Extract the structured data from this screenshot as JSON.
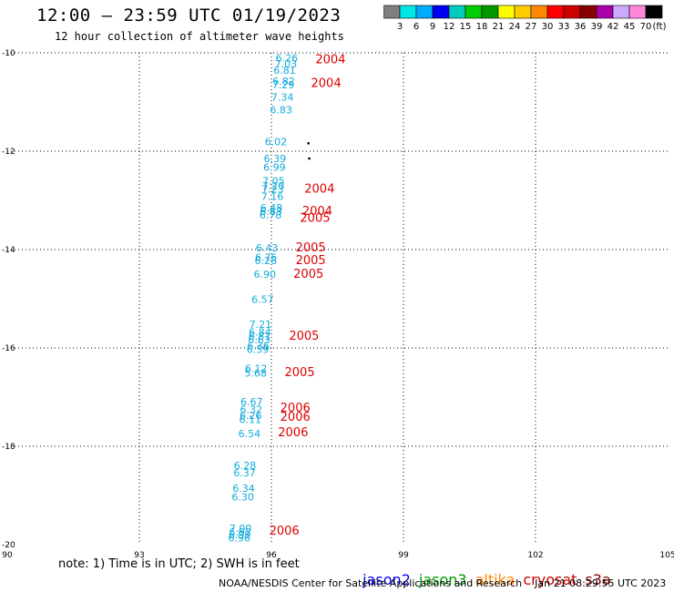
{
  "header": {
    "title": "12:00 – 23:59 UTC 01/19/2023",
    "subtitle": "12 hour collection of altimeter wave heights"
  },
  "colorbar": {
    "colors": [
      "#808080",
      "#00e5e5",
      "#00aaff",
      "#0000ee",
      "#00ccbb",
      "#00cc00",
      "#009900",
      "#ffff00",
      "#ffcc00",
      "#ff8800",
      "#ff0000",
      "#cc0000",
      "#880000",
      "#aa00aa",
      "#ccaaff",
      "#ff88dd",
      "#000000"
    ],
    "labels": [
      "3",
      "6",
      "9",
      "12",
      "15",
      "18",
      "21",
      "24",
      "27",
      "30",
      "33",
      "36",
      "39",
      "42",
      "45",
      "70"
    ],
    "unit": "(ft)"
  },
  "chart_data": {
    "type": "scatter",
    "title": "12:00 – 23:59 UTC 01/19/2023",
    "xlim": [
      90,
      105
    ],
    "ylim": [
      -20,
      -10
    ],
    "xticks": [
      "90",
      "93",
      "96",
      "99",
      "102",
      "105"
    ],
    "yticks": [
      "-10",
      "-12",
      "-14",
      "-16",
      "-18",
      "-20"
    ],
    "grid": true,
    "points": [
      {
        "lon": 96.35,
        "lat": -10.1,
        "swh": "6.26"
      },
      {
        "lon": 96.33,
        "lat": -10.22,
        "swh": "7.03"
      },
      {
        "lon": 96.3,
        "lat": -10.35,
        "swh": "6.81"
      },
      {
        "lon": 96.28,
        "lat": -10.57,
        "swh": "6.82"
      },
      {
        "lon": 96.27,
        "lat": -10.65,
        "swh": "7.29"
      },
      {
        "lon": 96.25,
        "lat": -10.9,
        "swh": "7.34"
      },
      {
        "lon": 96.22,
        "lat": -11.16,
        "swh": "6.83"
      },
      {
        "lon": 96.1,
        "lat": -11.81,
        "swh": "6.02"
      },
      {
        "lon": 96.08,
        "lat": -12.15,
        "swh": "6.39"
      },
      {
        "lon": 96.07,
        "lat": -12.32,
        "swh": "6.99"
      },
      {
        "lon": 96.05,
        "lat": -12.6,
        "swh": "7.05"
      },
      {
        "lon": 96.04,
        "lat": -12.7,
        "swh": "7.20"
      },
      {
        "lon": 96.03,
        "lat": -12.77,
        "swh": "7.23"
      },
      {
        "lon": 96.02,
        "lat": -12.92,
        "swh": "7.16"
      },
      {
        "lon": 96.0,
        "lat": -13.15,
        "swh": "6.48"
      },
      {
        "lon": 95.99,
        "lat": -13.22,
        "swh": "6.83"
      },
      {
        "lon": 95.98,
        "lat": -13.3,
        "swh": "6.78"
      },
      {
        "lon": 95.9,
        "lat": -13.96,
        "swh": "6.43"
      },
      {
        "lon": 95.88,
        "lat": -14.16,
        "swh": "6.75"
      },
      {
        "lon": 95.87,
        "lat": -14.22,
        "swh": "6.26"
      },
      {
        "lon": 95.85,
        "lat": -14.5,
        "swh": "6.90"
      },
      {
        "lon": 95.8,
        "lat": -15.01,
        "swh": "6.57"
      },
      {
        "lon": 95.75,
        "lat": -15.52,
        "swh": "7.21"
      },
      {
        "lon": 95.74,
        "lat": -15.68,
        "swh": "6.84"
      },
      {
        "lon": 95.73,
        "lat": -15.76,
        "swh": "6.81"
      },
      {
        "lon": 95.72,
        "lat": -15.83,
        "swh": "6.63"
      },
      {
        "lon": 95.7,
        "lat": -15.95,
        "swh": "6.36"
      },
      {
        "lon": 95.69,
        "lat": -16.03,
        "swh": "6.59"
      },
      {
        "lon": 95.65,
        "lat": -16.42,
        "swh": "6.12"
      },
      {
        "lon": 95.64,
        "lat": -16.51,
        "swh": "5.68"
      },
      {
        "lon": 95.55,
        "lat": -17.09,
        "swh": "6.67"
      },
      {
        "lon": 95.54,
        "lat": -17.25,
        "swh": "6.32"
      },
      {
        "lon": 95.53,
        "lat": -17.37,
        "swh": "6.26"
      },
      {
        "lon": 95.52,
        "lat": -17.45,
        "swh": "6.11"
      },
      {
        "lon": 95.5,
        "lat": -17.74,
        "swh": "6.54"
      },
      {
        "lon": 95.4,
        "lat": -18.39,
        "swh": "6.28"
      },
      {
        "lon": 95.39,
        "lat": -18.54,
        "swh": "6.37"
      },
      {
        "lon": 95.37,
        "lat": -18.85,
        "swh": "6.34"
      },
      {
        "lon": 95.35,
        "lat": -19.03,
        "swh": "6.30"
      },
      {
        "lon": 95.3,
        "lat": -19.67,
        "swh": "7.00"
      },
      {
        "lon": 95.29,
        "lat": -19.74,
        "swh": "6.92"
      },
      {
        "lon": 95.28,
        "lat": -19.8,
        "swh": "6.99"
      },
      {
        "lon": 95.27,
        "lat": -19.86,
        "swh": "6.96"
      }
    ],
    "time_labels": [
      {
        "lon": 97.0,
        "lat": -10.12,
        "text": "2004"
      },
      {
        "lon": 96.9,
        "lat": -10.6,
        "text": "2004"
      },
      {
        "lon": 96.75,
        "lat": -12.75,
        "text": "2004"
      },
      {
        "lon": 96.7,
        "lat": -13.2,
        "text": "2004"
      },
      {
        "lon": 96.65,
        "lat": -13.34,
        "text": "2005"
      },
      {
        "lon": 96.55,
        "lat": -13.94,
        "text": "2005"
      },
      {
        "lon": 96.55,
        "lat": -14.2,
        "text": "2005"
      },
      {
        "lon": 96.5,
        "lat": -14.48,
        "text": "2005"
      },
      {
        "lon": 96.4,
        "lat": -15.74,
        "text": "2005"
      },
      {
        "lon": 96.3,
        "lat": -16.48,
        "text": "2005"
      },
      {
        "lon": 96.2,
        "lat": -17.2,
        "text": "2006"
      },
      {
        "lon": 96.2,
        "lat": -17.39,
        "text": "2006"
      },
      {
        "lon": 96.15,
        "lat": -17.7,
        "text": "2006"
      },
      {
        "lon": 95.95,
        "lat": -19.7,
        "text": "2006"
      }
    ],
    "point_color": "#11aadd",
    "time_color": "#dd0000",
    "land_marks": [
      {
        "lon": 96.84,
        "lat": -11.84
      },
      {
        "lon": 96.86,
        "lat": -12.15
      }
    ]
  },
  "footer": {
    "note": "note: 1) Time is in UTC; 2) SWH is in feet",
    "satellites": [
      {
        "name": "jason2",
        "color": "#0000ee"
      },
      {
        "name": "jason3",
        "color": "#009900"
      },
      {
        "name": "altika",
        "color": "#ff8800"
      },
      {
        "name": "cryosat",
        "color": "#cc0000"
      },
      {
        "name": "s3a",
        "color": "#880000"
      }
    ],
    "credit": "NOAA/NESDIS Center for Satellite Applications and Research    Jan 21 08:29:55 UTC 2023"
  }
}
